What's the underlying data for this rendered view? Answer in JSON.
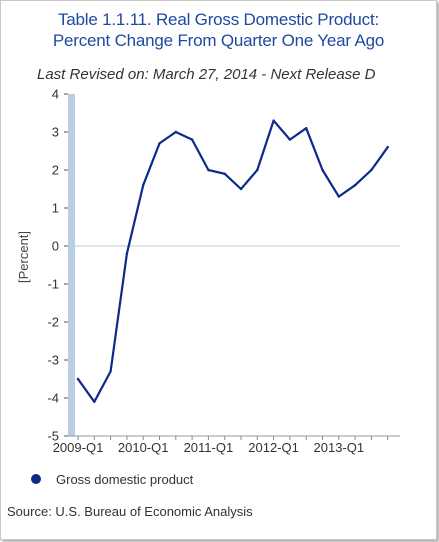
{
  "title_line1": "Table 1.1.11. Real Gross Domestic Product:",
  "title_line2": "Percent Change From Quarter One Year Ago",
  "subtitle": "Last Revised on: March 27, 2014 - Next Release D",
  "source": "Source: U.S. Bureau of Economic Analysis",
  "colors": {
    "title": "#1f4aa0",
    "line": "#0d2a8a",
    "axis_band": "#b9cde3",
    "zero_line": "#b9cde3"
  },
  "chart_data": {
    "type": "line",
    "ylabel": "[Percent]",
    "ylim": [
      -5,
      4
    ],
    "yticks": [
      4,
      3,
      2,
      1,
      0,
      -1,
      -2,
      -3,
      -4,
      -5
    ],
    "x_tick_labels": [
      "2009-Q1",
      "2010-Q1",
      "2011-Q1",
      "2012-Q1",
      "2013-Q1"
    ],
    "x": [
      "2009-Q1",
      "2009-Q2",
      "2009-Q3",
      "2009-Q4",
      "2010-Q1",
      "2010-Q2",
      "2010-Q3",
      "2010-Q4",
      "2011-Q1",
      "2011-Q2",
      "2011-Q3",
      "2011-Q4",
      "2012-Q1",
      "2012-Q2",
      "2012-Q3",
      "2012-Q4",
      "2013-Q1",
      "2013-Q2",
      "2013-Q3",
      "2013-Q4"
    ],
    "series": [
      {
        "name": "Gross domestic product",
        "values": [
          -3.5,
          -4.1,
          -3.3,
          -0.2,
          1.6,
          2.7,
          3.0,
          2.8,
          2.0,
          1.9,
          1.5,
          2.0,
          3.3,
          2.8,
          3.1,
          2.0,
          1.3,
          1.6,
          2.0,
          2.6
        ]
      }
    ],
    "grid": false,
    "legend_position": "bottom-left"
  }
}
